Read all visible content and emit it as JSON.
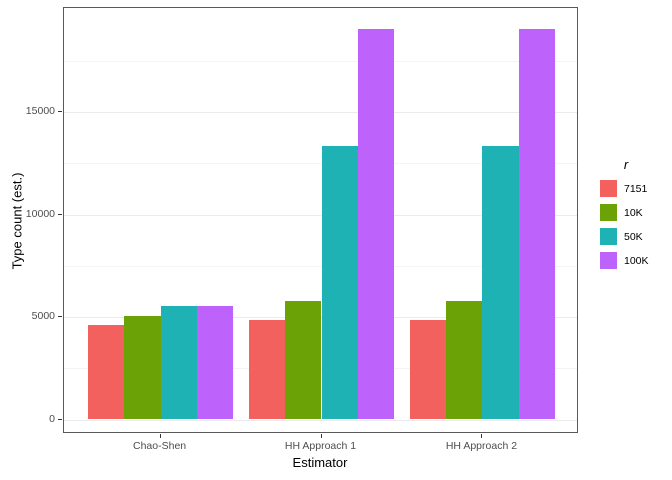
{
  "chart_data": {
    "type": "bar",
    "bar_grouping": "dodge",
    "title": "",
    "xlabel": "Estimator",
    "ylabel": "Type count (est.)",
    "categories": [
      "Chao-Shen",
      "HH Approach 1",
      "HH Approach 2"
    ],
    "series": [
      {
        "name": "7151",
        "color": "#F2615E",
        "values": [
          4600,
          4850,
          4850
        ]
      },
      {
        "name": "10K",
        "color": "#6BA306",
        "values": [
          5050,
          5800,
          5800
        ]
      },
      {
        "name": "50K",
        "color": "#1FB2B5",
        "values": [
          5520,
          13350,
          13350
        ]
      },
      {
        "name": "100K",
        "color": "#BD63FC",
        "values": [
          5520,
          19050,
          19050
        ]
      }
    ],
    "legend": {
      "title": "r",
      "position": "right"
    },
    "y_ticks": [
      0,
      5000,
      10000,
      15000
    ],
    "y_minor_ticks": [
      2500,
      7500,
      12500,
      17500
    ],
    "ylim": [
      0,
      19950
    ],
    "grid": true
  },
  "colors": {
    "background": "#ffffff",
    "panel_border": "#595959",
    "grid_major": "#ebebeb",
    "grid_minor": "#f4f4f4",
    "tick_mark": "#333333",
    "tick_text": "#4d4d4d",
    "axis_title_text": "#000000"
  }
}
